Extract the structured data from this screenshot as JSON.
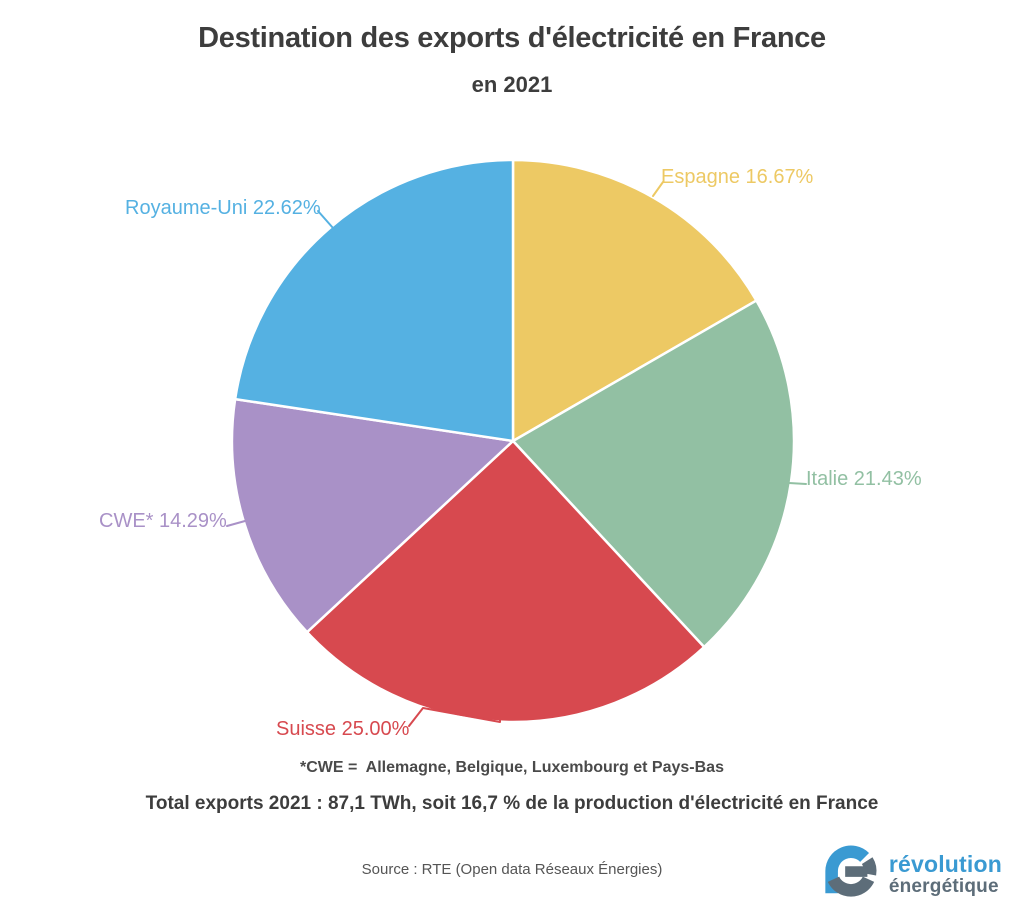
{
  "header": {
    "title": "Destination des exports d'électricité en France",
    "subtitle": "en 2021"
  },
  "chart_data": {
    "type": "pie",
    "title": "Destination des exports d'électricité en France",
    "subtitle": "en 2021",
    "start_angle_deg": 0,
    "direction": "clockwise",
    "slices": [
      {
        "label": "Espagne",
        "value": 16.67,
        "display": "Espagne 16.67%",
        "color": "#edc964"
      },
      {
        "label": "Italie",
        "value": 21.43,
        "display": "Italie 21.43%",
        "color": "#92c0a3"
      },
      {
        "label": "Suisse",
        "value": 25.0,
        "display": "Suisse 25.00%",
        "color": "#d7494f"
      },
      {
        "label": "CWE*",
        "value": 14.29,
        "display": "CWE* 14.29%",
        "color": "#a991c7"
      },
      {
        "label": "Royaume-Uni",
        "value": 22.62,
        "display": "Royaume-Uni 22.62%",
        "color": "#55b1e2"
      }
    ]
  },
  "notes": {
    "cwe_footnote": "*CWE =  Allemagne, Belgique, Luxembourg et Pays-Bas",
    "total_line": "Total exports 2021 : 87,1 TWh, soit 16,7 % de la production d'électricité en France",
    "source_line": "Source : RTE (Open data Réseaux Énergies)"
  },
  "logo": {
    "line1": "révolution",
    "line2": "énergétique",
    "accent_color": "#3a9ad2",
    "secondary_color": "#5d6d79"
  }
}
